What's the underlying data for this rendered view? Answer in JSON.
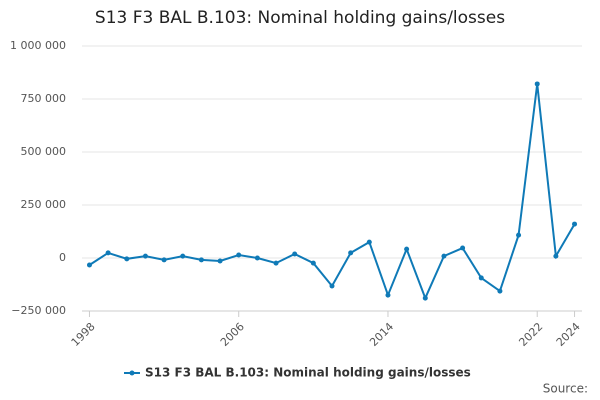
{
  "chart_data": {
    "type": "line",
    "title": "S13 F3 BAL B.103: Nominal holding gains/losses",
    "x": [
      1998,
      1999,
      2000,
      2001,
      2002,
      2003,
      2004,
      2005,
      2006,
      2007,
      2008,
      2009,
      2010,
      2011,
      2012,
      2013,
      2014,
      2015,
      2016,
      2017,
      2018,
      2019,
      2020,
      2021,
      2022,
      2023,
      2024
    ],
    "series": [
      {
        "name": "S13 F3 BAL B.103: Nominal holding gains/losses",
        "color": "#0f7ab7",
        "values": [
          -33000,
          24000,
          -4000,
          9000,
          -9000,
          9000,
          -9000,
          -14000,
          14000,
          0,
          -24000,
          19000,
          -24000,
          -132000,
          24000,
          75000,
          -175000,
          42000,
          -189000,
          9000,
          47000,
          -94000,
          -156000,
          108000,
          821000,
          9000,
          160000
        ]
      }
    ],
    "xlim": [
      1997.6,
      2024.4
    ],
    "xticks": [
      1998,
      2006,
      2014,
      2022,
      2024
    ],
    "ylim": [
      -250000,
      1000000
    ],
    "yticks": [
      {
        "value": -250000,
        "label": "−250 000"
      },
      0,
      {
        "value": 250000,
        "label": "250 000"
      },
      {
        "value": 500000,
        "label": "500 000"
      },
      {
        "value": 750000,
        "label": "750 000"
      },
      {
        "value": 1000000,
        "label": "1 000 000"
      }
    ],
    "grid": true,
    "legend": "bottom",
    "source": "Source:"
  }
}
